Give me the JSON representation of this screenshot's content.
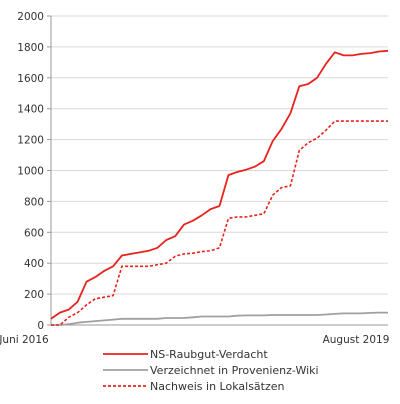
{
  "chart_data": {
    "type": "line",
    "title": "",
    "xlabel": "",
    "ylabel": "",
    "ylim": [
      0,
      2000
    ],
    "yticks": [
      0,
      200,
      400,
      600,
      800,
      1000,
      1200,
      1400,
      1600,
      1800,
      2000
    ],
    "x_tick_labels": [
      "Juni 2016",
      "August 2019"
    ],
    "grid": true,
    "legend_position": "bottom",
    "x": [
      0,
      1,
      2,
      3,
      4,
      5,
      6,
      7,
      8,
      9,
      10,
      11,
      12,
      13,
      14,
      15,
      16,
      17,
      18,
      19,
      20,
      21,
      22,
      23,
      24,
      25,
      26,
      27,
      28,
      29,
      30,
      31,
      32,
      33,
      34,
      35,
      36,
      37,
      38
    ],
    "series": [
      {
        "name": "NS-Raubgut-Verdacht",
        "color": "#e8231d",
        "style": "solid",
        "values": [
          40,
          80,
          100,
          150,
          280,
          310,
          350,
          380,
          450,
          460,
          470,
          480,
          500,
          550,
          575,
          650,
          675,
          710,
          750,
          770,
          970,
          990,
          1005,
          1025,
          1060,
          1190,
          1270,
          1370,
          1545,
          1560,
          1600,
          1690,
          1765,
          1745,
          1745,
          1755,
          1760,
          1770,
          1775
        ]
      },
      {
        "name": "Verzeichnet in Provenienz-Wiki",
        "color": "#a0a0a0",
        "style": "solid",
        "values": [
          0,
          0,
          5,
          15,
          20,
          25,
          30,
          35,
          40,
          40,
          40,
          40,
          40,
          45,
          45,
          45,
          50,
          55,
          55,
          55,
          55,
          60,
          62,
          62,
          62,
          65,
          65,
          65,
          65,
          65,
          65,
          68,
          72,
          75,
          75,
          75,
          78,
          80,
          80
        ]
      },
      {
        "name": "Nachweis in Lokalsätzen",
        "color": "#e8231d",
        "style": "dotted",
        "values": [
          0,
          0,
          50,
          80,
          130,
          170,
          180,
          190,
          380,
          380,
          380,
          380,
          390,
          400,
          445,
          460,
          465,
          475,
          480,
          500,
          690,
          700,
          700,
          710,
          720,
          840,
          890,
          900,
          1130,
          1180,
          1210,
          1260,
          1320,
          1320,
          1320,
          1320,
          1320,
          1320,
          1320
        ]
      }
    ]
  }
}
